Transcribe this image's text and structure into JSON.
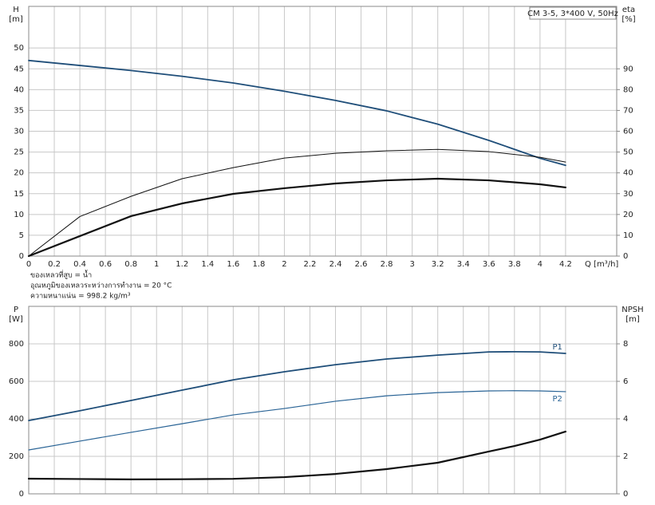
{
  "chart_data": [
    {
      "type": "line",
      "title": "CM 3-5, 3*400 V, 50Hz",
      "ylabel": "H",
      "yunit": "[m]",
      "y2label": "eta",
      "y2unit": "[%]",
      "xlabel": "Q [m³/h]",
      "annotations": [
        "ของเหลวที่สูบ = น้ำ",
        "อุณหภูมิของเหลวระหว่างการทำงาน = 20 °C",
        "ความหนาแน่น = 998.2 kg/m³"
      ],
      "x": [
        0,
        0.4,
        0.8,
        1.2,
        1.6,
        2.0,
        2.4,
        2.8,
        3.2,
        3.6,
        4.0,
        4.2
      ],
      "xlim": [
        0,
        4.6
      ],
      "xticks": [
        0,
        0.2,
        0.4,
        0.6,
        0.8,
        1.0,
        1.2,
        1.4,
        1.6,
        1.8,
        2.0,
        2.2,
        2.4,
        2.6,
        2.8,
        3.0,
        3.2,
        3.4,
        3.6,
        3.8,
        4.0,
        4.2
      ],
      "ylim": [
        0,
        60
      ],
      "yticks": [
        0,
        5,
        10,
        15,
        20,
        25,
        30,
        35,
        40,
        45,
        50
      ],
      "y2lim": [
        0,
        120
      ],
      "y2ticks": [
        0,
        10,
        20,
        30,
        40,
        50,
        60,
        70,
        80,
        90
      ],
      "grid": true,
      "series": [
        {
          "color": "#1f4e79",
          "values": [
            47,
            45.8,
            44.6,
            43.2,
            41.6,
            39.6,
            37.4,
            34.9,
            31.7,
            27.8,
            23.5,
            21.8
          ]
        },
        {
          "color": "#111111",
          "axis": "y2",
          "values": [
            0,
            19,
            28.7,
            37.2,
            42.5,
            47.1,
            49.4,
            50.6,
            51.3,
            50.2,
            47.5,
            45.2
          ]
        },
        {
          "color": "#111111",
          "axis": "y2",
          "values": [
            0,
            9.6,
            19.2,
            25.3,
            29.9,
            32.6,
            34.9,
            36.4,
            37.2,
            36.4,
            34.5,
            33.0
          ]
        }
      ]
    },
    {
      "type": "line",
      "ylabel": "P",
      "yunit": "[W]",
      "y2label": "NPSH",
      "y2unit": "[m]",
      "x": [
        0,
        0.4,
        0.8,
        1.2,
        1.6,
        2.0,
        2.4,
        2.8,
        3.2,
        3.6,
        3.8,
        4.0,
        4.2
      ],
      "xlim": [
        0,
        4.6
      ],
      "ylim": [
        0,
        1000
      ],
      "yticks": [
        0,
        200,
        400,
        600,
        800
      ],
      "y2lim": [
        0,
        10
      ],
      "y2ticks": [
        0,
        2,
        4,
        6,
        8
      ],
      "grid": true,
      "series": [
        {
          "name": "P1",
          "color": "#1f4e79",
          "values": [
            391,
            443,
            498,
            553,
            608,
            651,
            689,
            719,
            740,
            757,
            758,
            757,
            749
          ]
        },
        {
          "name": "P2",
          "color": "#2a6496",
          "values": [
            234,
            281,
            328,
            374,
            421,
            455,
            494,
            523,
            540,
            549,
            550,
            549,
            545
          ]
        },
        {
          "color": "#111111",
          "axis": "y2",
          "values": [
            0.81,
            0.79,
            0.77,
            0.78,
            0.8,
            0.89,
            1.06,
            1.32,
            1.66,
            2.26,
            2.55,
            2.89,
            3.32
          ]
        }
      ]
    }
  ]
}
